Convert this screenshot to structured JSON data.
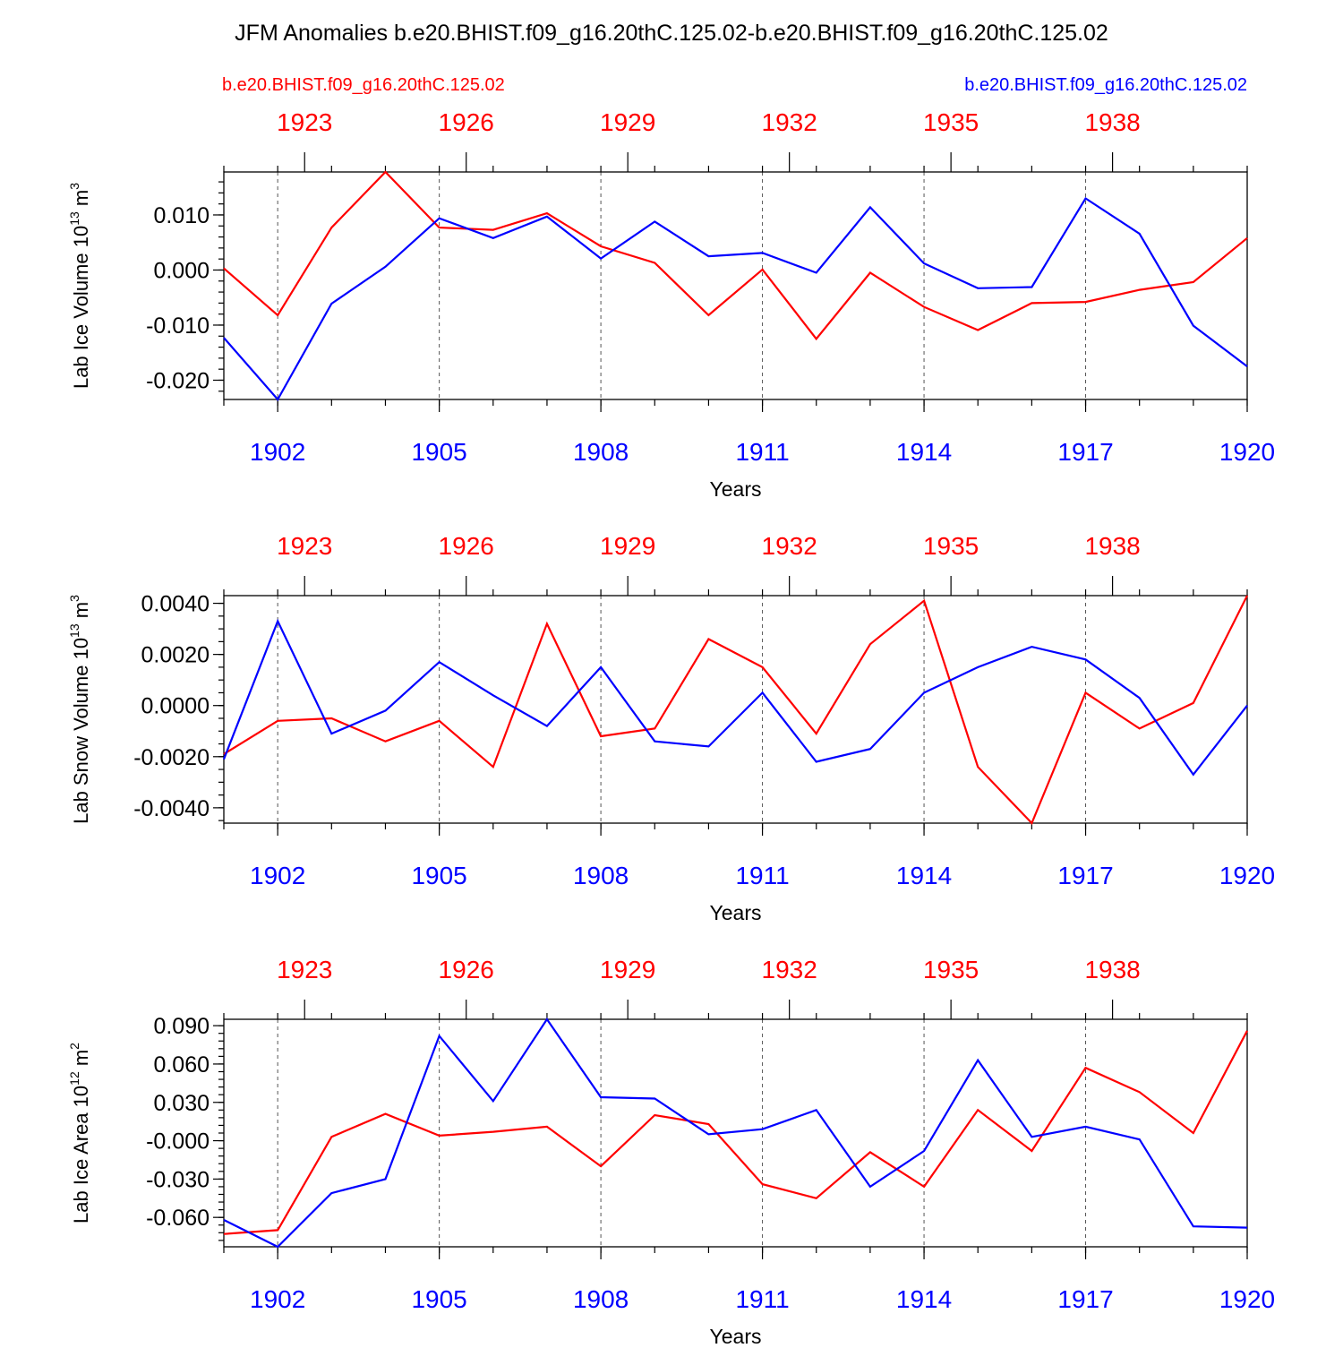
{
  "title": "JFM Anomalies b.e20.BHIST.f09_g16.20thC.125.02-b.e20.BHIST.f09_g16.20thC.125.02",
  "legend": {
    "left_label": "b.e20.BHIST.f09_g16.20thC.125.02",
    "right_label": "b.e20.BHIST.f09_g16.20thC.125.02",
    "left_color": "#ff0000",
    "right_color": "#0000ff"
  },
  "colors": {
    "red": "#ff0000",
    "blue": "#0000ff",
    "axis": "#000000"
  },
  "chart_data": [
    {
      "type": "line",
      "title": "",
      "ylabel": "Lab Ice Volume",
      "yunit_base": "10",
      "yunit_exp": "13",
      "yunit_tail": "m",
      "yunit_tail_exp": "3",
      "xlabel": "Years",
      "ylim": [
        -0.0235,
        0.0178
      ],
      "yticks": [
        0.01,
        0.0,
        -0.01,
        -0.02
      ],
      "ytick_labels": [
        "0.010",
        "0.000",
        "-0.010",
        "-0.020"
      ],
      "minor_ytick_step": 0.002,
      "xlim": [
        1901,
        1920
      ],
      "bottom_ticks": [
        1902,
        1905,
        1908,
        1911,
        1914,
        1917,
        1920
      ],
      "bottom_tick_labels": [
        "1902",
        "1905",
        "1908",
        "1911",
        "1914",
        "1917",
        "1920"
      ],
      "top_ticks": [
        1902,
        1905,
        1908,
        1911,
        1914,
        1917
      ],
      "top_tick_labels": [
        "1923",
        "1926",
        "1929",
        "1932",
        "1935",
        "1938"
      ],
      "grid_x": [
        1902,
        1905,
        1908,
        1911,
        1914,
        1917
      ],
      "x": [
        1901,
        1902,
        1903,
        1904,
        1905,
        1906,
        1907,
        1908,
        1909,
        1910,
        1911,
        1912,
        1913,
        1914,
        1915,
        1916,
        1917,
        1918,
        1919,
        1920
      ],
      "series": [
        {
          "name": "b.e20.BHIST.f09_g16.20thC.125.02 (red, years 1922-1941)",
          "color": "#ff0000",
          "values": [
            0.0003,
            -0.0082,
            0.0077,
            0.0178,
            0.0077,
            0.0073,
            0.0103,
            0.0043,
            0.0013,
            -0.0082,
            0.0001,
            -0.0125,
            -0.0005,
            -0.0067,
            -0.0109,
            -0.006,
            -0.0058,
            -0.0036,
            -0.0022,
            0.0058
          ]
        },
        {
          "name": "b.e20.BHIST.f09_g16.20thC.125.02 (blue, years 1901-1920)",
          "color": "#0000ff",
          "values": [
            -0.0123,
            -0.0235,
            -0.0061,
            0.0006,
            0.0094,
            0.0058,
            0.0097,
            0.0021,
            0.0088,
            0.0025,
            0.0031,
            -0.0005,
            0.0114,
            0.0012,
            -0.0033,
            -0.0031,
            0.013,
            0.0066,
            -0.0101,
            -0.0175
          ]
        }
      ]
    },
    {
      "type": "line",
      "title": "",
      "ylabel": "Lab Snow Volume",
      "yunit_base": "10",
      "yunit_exp": "13",
      "yunit_tail": "m",
      "yunit_tail_exp": "3",
      "xlabel": "Years",
      "ylim": [
        -0.0046,
        0.0043
      ],
      "yticks": [
        0.004,
        0.002,
        0.0,
        -0.002,
        -0.004
      ],
      "ytick_labels": [
        "0.0040",
        "0.0020",
        "0.0000",
        "-0.0020",
        "-0.0040"
      ],
      "minor_ytick_step": 0.0005,
      "xlim": [
        1901,
        1920
      ],
      "bottom_ticks": [
        1902,
        1905,
        1908,
        1911,
        1914,
        1917,
        1920
      ],
      "bottom_tick_labels": [
        "1902",
        "1905",
        "1908",
        "1911",
        "1914",
        "1917",
        "1920"
      ],
      "top_ticks": [
        1902,
        1905,
        1908,
        1911,
        1914,
        1917
      ],
      "top_tick_labels": [
        "1923",
        "1926",
        "1929",
        "1932",
        "1935",
        "1938"
      ],
      "grid_x": [
        1902,
        1905,
        1908,
        1911,
        1914,
        1917
      ],
      "x": [
        1901,
        1902,
        1903,
        1904,
        1905,
        1906,
        1907,
        1908,
        1909,
        1910,
        1911,
        1912,
        1913,
        1914,
        1915,
        1916,
        1917,
        1918,
        1919,
        1920
      ],
      "series": [
        {
          "name": "b.e20.BHIST.f09_g16.20thC.125.02 (red, years 1922-1941)",
          "color": "#ff0000",
          "values": [
            -0.0019,
            -0.0006,
            -0.0005,
            -0.0014,
            -0.0006,
            -0.0024,
            0.0032,
            -0.0012,
            -0.0009,
            0.0026,
            0.0015,
            -0.0011,
            0.0024,
            0.0041,
            -0.0024,
            -0.0046,
            0.0005,
            -0.0009,
            0.0001,
            0.0043
          ]
        },
        {
          "name": "b.e20.BHIST.f09_g16.20thC.125.02 (blue, years 1901-1920)",
          "color": "#0000ff",
          "values": [
            -0.0021,
            0.0033,
            -0.0011,
            -0.0002,
            0.0017,
            0.0004,
            -0.0008,
            0.0015,
            -0.0014,
            -0.0016,
            0.0005,
            -0.0022,
            -0.0017,
            0.0005,
            0.0015,
            0.0023,
            0.0018,
            0.0003,
            -0.0027,
            0.0
          ]
        }
      ]
    },
    {
      "type": "line",
      "title": "",
      "ylabel": "Lab Ice Area",
      "yunit_base": "10",
      "yunit_exp": "12",
      "yunit_tail": "m",
      "yunit_tail_exp": "2",
      "xlabel": "Years",
      "ylim": [
        -0.083,
        0.095
      ],
      "yticks": [
        0.09,
        0.06,
        0.03,
        0.0,
        -0.03,
        -0.06
      ],
      "ytick_labels": [
        "0.090",
        "0.060",
        "0.030",
        "-0.000",
        "-0.030",
        "-0.060"
      ],
      "minor_ytick_step": 0.006,
      "xlim": [
        1901,
        1920
      ],
      "bottom_ticks": [
        1902,
        1905,
        1908,
        1911,
        1914,
        1917,
        1920
      ],
      "bottom_tick_labels": [
        "1902",
        "1905",
        "1908",
        "1911",
        "1914",
        "1917",
        "1920"
      ],
      "top_ticks": [
        1902,
        1905,
        1908,
        1911,
        1914,
        1917
      ],
      "top_tick_labels": [
        "1923",
        "1926",
        "1929",
        "1932",
        "1935",
        "1938"
      ],
      "grid_x": [
        1902,
        1905,
        1908,
        1911,
        1914,
        1917
      ],
      "x": [
        1901,
        1902,
        1903,
        1904,
        1905,
        1906,
        1907,
        1908,
        1909,
        1910,
        1911,
        1912,
        1913,
        1914,
        1915,
        1916,
        1917,
        1918,
        1919,
        1920
      ],
      "series": [
        {
          "name": "b.e20.BHIST.f09_g16.20thC.125.02 (red, years 1922-1941)",
          "color": "#ff0000",
          "values": [
            -0.073,
            -0.07,
            0.003,
            0.021,
            0.004,
            0.007,
            0.011,
            -0.02,
            0.02,
            0.013,
            -0.034,
            -0.045,
            -0.009,
            -0.036,
            0.024,
            -0.008,
            0.057,
            0.038,
            0.006,
            0.086
          ]
        },
        {
          "name": "b.e20.BHIST.f09_g16.20thC.125.02 (blue, years 1901-1920)",
          "color": "#0000ff",
          "values": [
            -0.062,
            -0.083,
            -0.041,
            -0.03,
            0.082,
            0.031,
            0.095,
            0.034,
            0.033,
            0.005,
            0.009,
            0.024,
            -0.036,
            -0.008,
            0.063,
            0.003,
            0.011,
            0.001,
            -0.067,
            -0.068
          ]
        }
      ]
    }
  ]
}
